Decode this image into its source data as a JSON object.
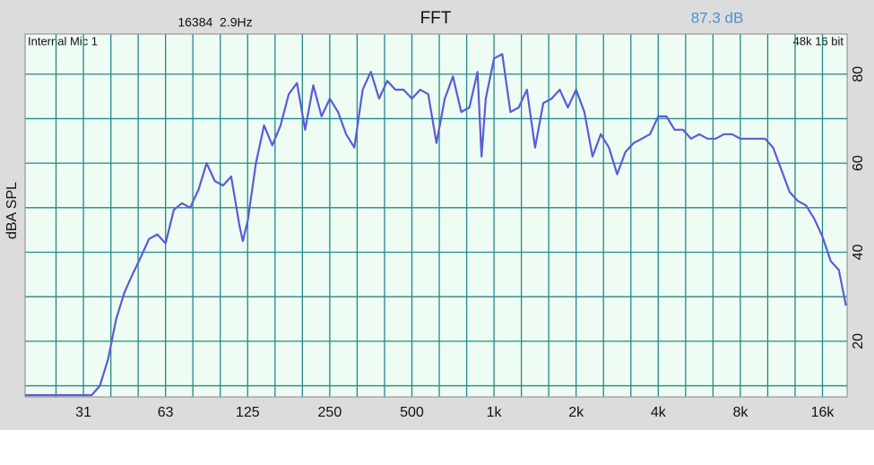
{
  "chart_data": {
    "type": "line",
    "title": "FFT",
    "fft_info": "16384  2.9Hz",
    "level": "87.3 dB",
    "input": "Internal Mic 1",
    "format": "48k 16 bit",
    "y_label": "dBA SPL",
    "xscale": "log",
    "grid": true,
    "xlim": [
      19.1,
      19700
    ],
    "ylim": [
      7.5,
      89
    ],
    "xticks": [
      {
        "value": 31.25,
        "label": "31"
      },
      {
        "value": 62.5,
        "label": "63"
      },
      125,
      250,
      500,
      {
        "value": 1000,
        "label": "1k"
      },
      {
        "value": 2000,
        "label": "2k"
      },
      {
        "value": 4000,
        "label": "4k"
      },
      {
        "value": 8000,
        "label": "8k"
      },
      {
        "value": 16000,
        "label": "16k"
      }
    ],
    "xminorticks": [
      24.8,
      39.4,
      49.6,
      78.7,
      99.2,
      157.5,
      198.4,
      315,
      397,
      630,
      794,
      1260,
      1587,
      2520,
      3175,
      5040,
      6350,
      10080,
      12700
    ],
    "yticks": [
      20,
      40,
      60,
      80
    ],
    "yminorticks": [
      10,
      30,
      50,
      70
    ],
    "x": [
      19.1,
      29.2,
      31.25,
      33.5,
      35.9,
      38.5,
      41.2,
      44.2,
      47.3,
      50.8,
      54.4,
      58.3,
      62.5,
      67,
      71.8,
      76.9,
      82.5,
      88.4,
      94.7,
      101.5,
      108.8,
      116.6,
      120,
      125,
      134,
      143.6,
      153.9,
      165,
      176.8,
      189.5,
      203,
      217.6,
      233.2,
      250,
      268,
      287,
      307.7,
      330,
      353.6,
      379,
      406,
      435,
      466,
      500,
      536,
      574,
      615.5,
      660,
      707,
      758,
      812,
      870,
      900,
      933,
      1000,
      1072,
      1149,
      1231,
      1320,
      1414,
      1516,
      1625,
      1741,
      1866,
      2000,
      2144,
      2297,
      2462,
      2639,
      2828,
      3031,
      3249,
      3482,
      3732,
      4000,
      4287,
      4595,
      4925,
      5278,
      5657,
      6063,
      6498,
      6964,
      7464,
      8000,
      8574,
      9190,
      9849,
      10556,
      11314,
      12126,
      12996,
      13929,
      14929,
      16000,
      17148,
      18379,
      19500
    ],
    "series": [
      {
        "color": "#5b5bd9",
        "values": [
          7.9,
          7.9,
          7.9,
          7.9,
          10,
          16,
          25,
          31,
          35,
          39,
          43,
          44,
          42,
          49.5,
          51,
          50,
          54,
          60,
          56,
          55,
          57,
          46,
          42.5,
          47,
          60,
          68.5,
          64,
          68.5,
          75.5,
          78,
          67.5,
          77.5,
          70.5,
          74.5,
          71.5,
          66.5,
          63.5,
          76.5,
          80.5,
          74.5,
          78.5,
          76.5,
          76.5,
          74.5,
          76.5,
          75.5,
          64.5,
          74.5,
          79.5,
          71.5,
          72.5,
          80.5,
          61.5,
          74.5,
          83.5,
          84.5,
          71.5,
          72.5,
          76.5,
          63.5,
          73.5,
          74.5,
          76.5,
          72.5,
          76.5,
          71.5,
          61.5,
          66.5,
          63.5,
          57.5,
          62.5,
          64.5,
          65.5,
          66.5,
          70.5,
          70.5,
          67.5,
          67.5,
          65.5,
          66.5,
          65.5,
          65.5,
          66.5,
          66.5,
          65.5,
          65.5,
          65.5,
          65.5,
          63.5,
          58.5,
          53.5,
          51.5,
          50.5,
          47.5,
          43.5,
          38,
          36,
          28
        ]
      }
    ]
  }
}
